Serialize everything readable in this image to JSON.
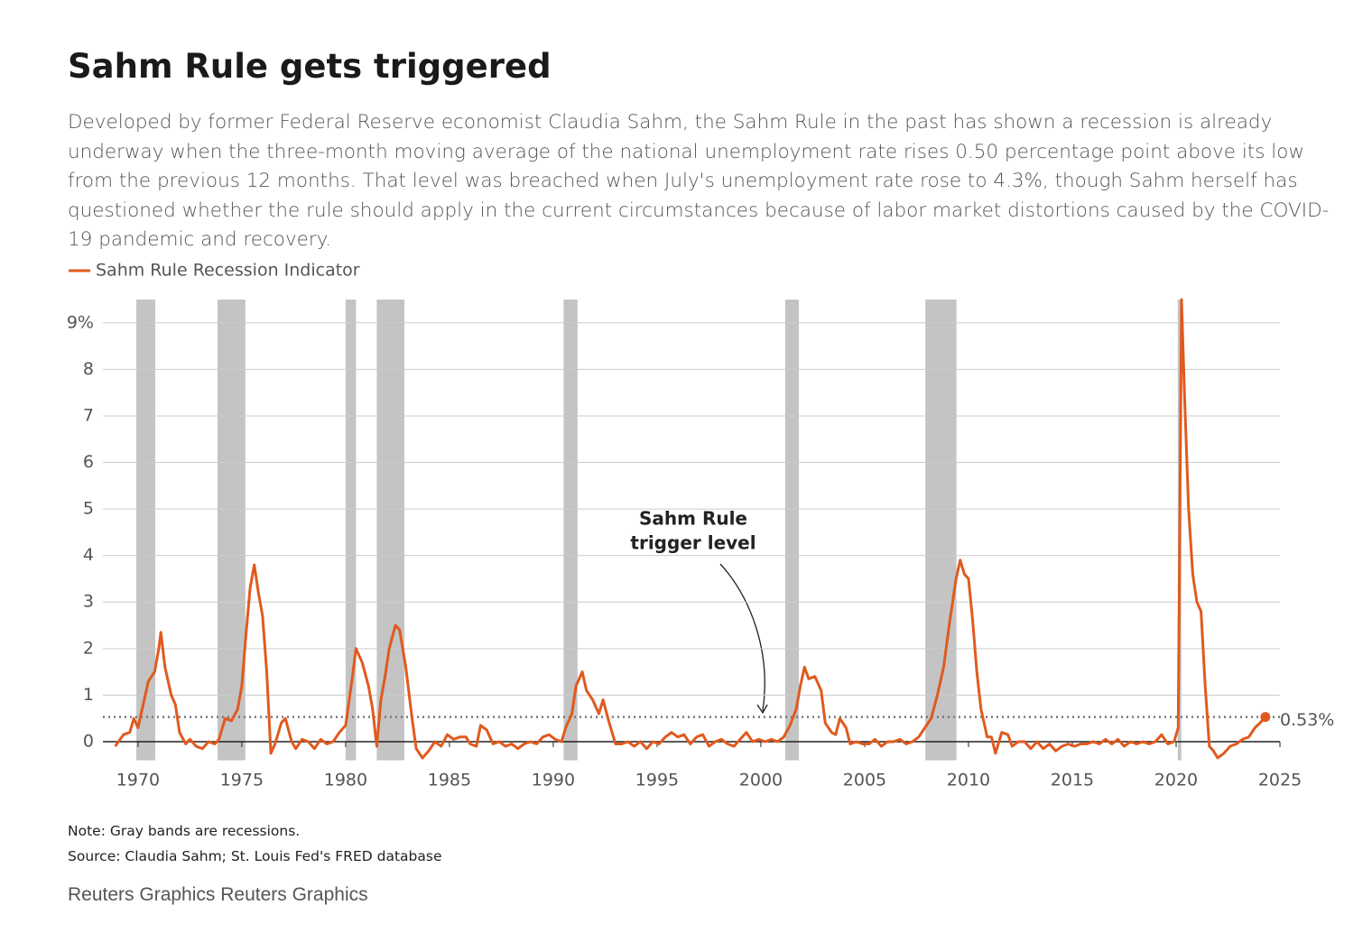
{
  "chart_data": {
    "type": "line",
    "title": "Sahm Rule gets triggered",
    "subtitle": "Developed by former Federal Reserve economist Claudia Sahm, the Sahm Rule in the past has shown a recession is already underway when the three-month moving average of the national unemployment rate rises 0.50 percentage point above its low from the previous 12 months. That level was breached when July's unemployment rate rose to 4.3%, though Sahm herself has questioned whether the rule should apply in the current circumstances because of labor market distortions caused by the COVID-19 pandemic and recovery.",
    "note": "Note: Gray bands are recessions.",
    "source": "Source: Claudia Sahm; St. Louis Fed's FRED database",
    "credit": "Reuters Graphics Reuters Graphics",
    "annotation": [
      "Sahm Rule",
      "trigger level"
    ],
    "reference_line": {
      "value": 0.53,
      "label": "0.53%",
      "color": "#777"
    },
    "recession_color": "#c4c4c4",
    "recessions": [
      [
        1969.92,
        1970.83
      ],
      [
        1973.83,
        1975.17
      ],
      [
        1980.0,
        1980.5
      ],
      [
        1981.5,
        1982.83
      ],
      [
        1990.5,
        1991.17
      ],
      [
        2001.17,
        2001.83
      ],
      [
        2007.92,
        2009.42
      ],
      [
        2020.08,
        2020.25
      ]
    ],
    "xlim": [
      1967.7,
      2025
    ],
    "xticks": [
      1970,
      1975,
      1980,
      1985,
      1990,
      1995,
      2000,
      2005,
      2010,
      2015,
      2020,
      2025
    ],
    "ylim": [
      -0.4,
      9.5
    ],
    "yticks": [
      0,
      1,
      2,
      3,
      4,
      5,
      6,
      7,
      8,
      {
        "value": 9,
        "label": "9%"
      }
    ],
    "grid": true,
    "x": [
      1968.9,
      1969.3,
      1969.6,
      1969.8,
      1970.0,
      1970.3,
      1970.5,
      1970.8,
      1971.0,
      1971.1,
      1971.3,
      1971.6,
      1971.8,
      1972.0,
      1972.3,
      1972.5,
      1972.8,
      1973.1,
      1973.4,
      1973.7,
      1973.9,
      1974.2,
      1974.5,
      1974.8,
      1975.0,
      1975.2,
      1975.4,
      1975.6,
      1975.8,
      1976.0,
      1976.2,
      1976.4,
      1976.6,
      1976.9,
      1977.1,
      1977.4,
      1977.6,
      1977.9,
      1978.2,
      1978.5,
      1978.8,
      1979.1,
      1979.4,
      1979.7,
      1980.0,
      1980.3,
      1980.5,
      1980.8,
      1981.1,
      1981.3,
      1981.5,
      1981.7,
      1981.9,
      1982.1,
      1982.4,
      1982.6,
      1982.9,
      1983.2,
      1983.4,
      1983.7,
      1984.0,
      1984.3,
      1984.6,
      1984.9,
      1985.2,
      1985.5,
      1985.8,
      1986.0,
      1986.3,
      1986.5,
      1986.8,
      1987.1,
      1987.4,
      1987.7,
      1988.0,
      1988.3,
      1988.6,
      1988.9,
      1989.2,
      1989.5,
      1989.8,
      1990.1,
      1990.4,
      1990.6,
      1990.9,
      1991.1,
      1991.4,
      1991.6,
      1991.9,
      1992.2,
      1992.4,
      1992.7,
      1993.0,
      1993.3,
      1993.6,
      1993.9,
      1994.2,
      1994.5,
      1994.8,
      1995.1,
      1995.4,
      1995.7,
      1996.0,
      1996.3,
      1996.6,
      1996.9,
      1997.2,
      1997.5,
      1997.8,
      1998.1,
      1998.4,
      1998.7,
      1999.0,
      1999.3,
      1999.6,
      1999.9,
      2000.2,
      2000.5,
      2000.8,
      2001.1,
      2001.4,
      2001.7,
      2001.9,
      2002.1,
      2002.3,
      2002.6,
      2002.9,
      2003.1,
      2003.4,
      2003.6,
      2003.8,
      2004.1,
      2004.3,
      2004.6,
      2004.9,
      2005.2,
      2005.5,
      2005.8,
      2006.1,
      2006.4,
      2006.7,
      2007.0,
      2007.3,
      2007.6,
      2007.9,
      2008.2,
      2008.5,
      2008.8,
      2009.1,
      2009.4,
      2009.6,
      2009.8,
      2010.0,
      2010.2,
      2010.4,
      2010.6,
      2010.9,
      2011.1,
      2011.3,
      2011.6,
      2011.9,
      2012.1,
      2012.4,
      2012.7,
      2013.0,
      2013.3,
      2013.6,
      2013.9,
      2014.2,
      2014.5,
      2014.8,
      2015.1,
      2015.4,
      2015.7,
      2016.0,
      2016.3,
      2016.6,
      2016.9,
      2017.2,
      2017.5,
      2017.8,
      2018.1,
      2018.4,
      2018.7,
      2019.0,
      2019.3,
      2019.6,
      2019.9,
      2020.1,
      2020.2,
      2020.26,
      2020.4,
      2020.6,
      2020.8,
      2021.0,
      2021.2,
      2021.4,
      2021.6,
      2021.8,
      2022.0,
      2022.3,
      2022.6,
      2022.9,
      2023.2,
      2023.5,
      2023.8,
      2024.1,
      2024.3
    ],
    "series": [
      {
        "name": "Sahm Rule Recession Indicator",
        "color": "#e05a1e",
        "values": [
          -0.1,
          0.15,
          0.2,
          0.5,
          0.3,
          0.9,
          1.3,
          1.5,
          2.0,
          2.35,
          1.6,
          1.0,
          0.8,
          0.2,
          -0.05,
          0.05,
          -0.1,
          -0.15,
          0.0,
          -0.05,
          0.05,
          0.5,
          0.45,
          0.7,
          1.2,
          2.3,
          3.3,
          3.8,
          3.2,
          2.7,
          1.5,
          -0.25,
          -0.05,
          0.4,
          0.5,
          0.0,
          -0.15,
          0.05,
          0.0,
          -0.15,
          0.05,
          -0.05,
          0.0,
          0.2,
          0.35,
          1.3,
          2.0,
          1.7,
          1.2,
          0.7,
          -0.1,
          0.9,
          1.4,
          2.0,
          2.5,
          2.4,
          1.6,
          0.5,
          -0.15,
          -0.35,
          -0.2,
          0.0,
          -0.1,
          0.15,
          0.05,
          0.1,
          0.1,
          -0.05,
          -0.1,
          0.35,
          0.25,
          -0.05,
          0.0,
          -0.1,
          -0.05,
          -0.15,
          -0.05,
          0.0,
          -0.05,
          0.1,
          0.15,
          0.05,
          0.0,
          0.3,
          0.6,
          1.2,
          1.5,
          1.1,
          0.9,
          0.6,
          0.9,
          0.4,
          -0.05,
          -0.05,
          0.0,
          -0.1,
          0.0,
          -0.15,
          0.0,
          -0.05,
          0.1,
          0.2,
          0.1,
          0.15,
          -0.05,
          0.1,
          0.15,
          -0.1,
          0.0,
          0.05,
          -0.05,
          -0.1,
          0.05,
          0.2,
          0.0,
          0.05,
          0.0,
          0.05,
          0.0,
          0.1,
          0.35,
          0.7,
          1.2,
          1.6,
          1.35,
          1.4,
          1.1,
          0.4,
          0.2,
          0.15,
          0.5,
          0.3,
          -0.05,
          0.0,
          -0.05,
          -0.05,
          0.05,
          -0.1,
          0.0,
          0.0,
          0.05,
          -0.05,
          0.0,
          0.1,
          0.3,
          0.5,
          1.0,
          1.6,
          2.6,
          3.5,
          3.9,
          3.6,
          3.5,
          2.6,
          1.5,
          0.7,
          0.1,
          0.1,
          -0.25,
          0.2,
          0.15,
          -0.1,
          0.0,
          0.0,
          -0.15,
          0.0,
          -0.15,
          -0.05,
          -0.2,
          -0.1,
          -0.05,
          -0.1,
          -0.05,
          -0.05,
          0.0,
          -0.05,
          0.05,
          -0.05,
          0.05,
          -0.1,
          0.0,
          -0.05,
          0.0,
          -0.05,
          0.0,
          0.15,
          -0.05,
          0.0,
          0.3,
          6.0,
          9.5,
          7.5,
          5.0,
          3.6,
          3.0,
          2.8,
          1.2,
          -0.1,
          -0.2,
          -0.35,
          -0.25,
          -0.1,
          -0.05,
          0.05,
          0.1,
          0.3,
          0.43,
          0.53
        ]
      }
    ]
  }
}
